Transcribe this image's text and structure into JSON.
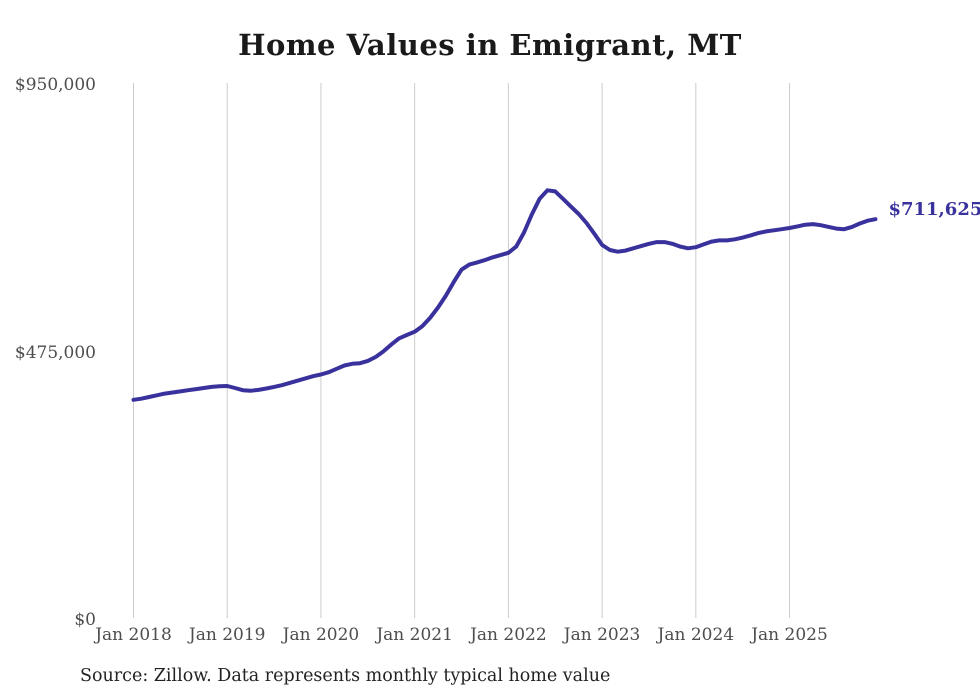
{
  "page": {
    "title": "Home Values in Emigrant, MT",
    "source_note": "Source: Zillow. Data represents monthly typical home value"
  },
  "chart_data": {
    "type": "line",
    "title": "Home Values in Emigrant, MT",
    "xlabel": "",
    "ylabel": "",
    "x_start_month": "Jan 2018",
    "x_end_month": "Dec 2025",
    "x_tick_labels": [
      "Jan 2018",
      "Jan 2019",
      "Jan 2020",
      "Jan 2021",
      "Jan 2022",
      "Jan 2023",
      "Jan 2024",
      "Jan 2025"
    ],
    "y_ticks": [
      {
        "value": 0,
        "label": "$0"
      },
      {
        "value": 475000,
        "label": "$475,000"
      },
      {
        "value": 950000,
        "label": "$950,000"
      }
    ],
    "ylim": [
      0,
      950000
    ],
    "grid": "vertical-only",
    "legend": "none",
    "line_color": "#3a329c",
    "grid_color": "#cccccc",
    "end_label": "$711,625",
    "end_value": 711625,
    "series": [
      {
        "name": "Monthly typical home value",
        "values": [
          391000,
          393000,
          396000,
          399000,
          402000,
          404000,
          406000,
          408000,
          410000,
          412000,
          414000,
          415000,
          415500,
          412000,
          408000,
          407000,
          408500,
          411000,
          414000,
          417000,
          421000,
          425000,
          429000,
          433000,
          436000,
          440000,
          446000,
          452000,
          455000,
          456000,
          460000,
          467000,
          477000,
          489000,
          500000,
          506000,
          512000,
          522000,
          537000,
          555000,
          576000,
          600000,
          622000,
          631000,
          635000,
          639000,
          644000,
          648000,
          652000,
          663000,
          688000,
          720000,
          748000,
          763000,
          761000,
          748000,
          734000,
          721000,
          705000,
          686000,
          666000,
          657000,
          654000,
          656000,
          660000,
          664000,
          668000,
          671000,
          671000,
          668000,
          663000,
          660000,
          662000,
          667000,
          672000,
          674000,
          674000,
          676000,
          679000,
          683000,
          687000,
          690000,
          692000,
          694000,
          696000,
          699000,
          702000,
          703000,
          701000,
          698000,
          695000,
          694000,
          698000,
          704000,
          709000,
          711625
        ]
      }
    ]
  }
}
